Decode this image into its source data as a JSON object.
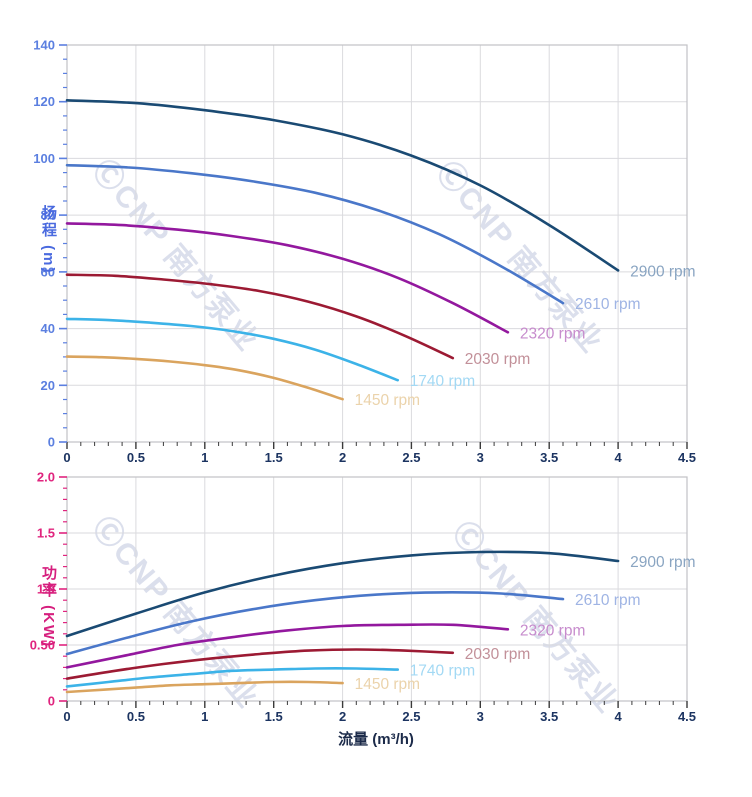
{
  "watermark": {
    "text": "ⒸCNP 南方泵业",
    "color": "rgba(176,184,212,0.45)"
  },
  "x_axis": {
    "title": "流量 (m³/h)",
    "min": 0,
    "max": 4.5,
    "major_step": 0.5,
    "minor_step": 0.1,
    "tick_labels": [
      "0",
      "0.5",
      "1",
      "1.5",
      "2",
      "2.5",
      "3",
      "3.5",
      "4",
      "4.5"
    ],
    "label_color": "#1c3461",
    "tick_color": "#3a3a3a"
  },
  "chart_data": [
    {
      "type": "line",
      "name": "head-curve-chart",
      "title": "",
      "xlabel": "流量 (m³/h)",
      "ylabel": "扬程 (m)",
      "ylabel_color": "#4a6adf",
      "ylim": [
        0,
        140
      ],
      "y_major_step": 20,
      "y_minor_step": 5,
      "ytick_labels": [
        "0",
        "20",
        "40",
        "60",
        "80",
        "100",
        "120",
        "140"
      ],
      "ytick_color": "#5b7fe0",
      "grid": true,
      "legend_position": "curve-end-labels",
      "series": [
        {
          "name": "2900 rpm",
          "color": "#1a4a73",
          "label_color": "#8aa5c2",
          "points": [
            [
              0,
              120.5
            ],
            [
              0.5,
              119.5
            ],
            [
              1,
              117
            ],
            [
              1.5,
              113.5
            ],
            [
              2,
              108.5
            ],
            [
              2.5,
              101
            ],
            [
              3,
              90.5
            ],
            [
              3.5,
              76.5
            ],
            [
              4,
              60.5
            ]
          ]
        },
        {
          "name": "2610 rpm",
          "color": "#4a77c9",
          "label_color": "#9fb4e4",
          "points": [
            [
              0,
              97.6
            ],
            [
              0.45,
              96.8
            ],
            [
              0.9,
              94.8
            ],
            [
              1.35,
              91.9
            ],
            [
              1.8,
              87.9
            ],
            [
              2.25,
              81.8
            ],
            [
              2.7,
              73.3
            ],
            [
              3.15,
              62
            ],
            [
              3.6,
              49
            ]
          ]
        },
        {
          "name": "2320 rpm",
          "color": "#93189e",
          "label_color": "#c78ccd",
          "points": [
            [
              0,
              77.1
            ],
            [
              0.4,
              76.5
            ],
            [
              0.8,
              74.9
            ],
            [
              1.2,
              72.6
            ],
            [
              1.6,
              69.4
            ],
            [
              2,
              64.6
            ],
            [
              2.4,
              57.9
            ],
            [
              2.8,
              49
            ],
            [
              3.2,
              38.7
            ]
          ]
        },
        {
          "name": "2030 rpm",
          "color": "#9c1a33",
          "label_color": "#c29099",
          "points": [
            [
              0,
              59
            ],
            [
              0.35,
              58.6
            ],
            [
              0.7,
              57.3
            ],
            [
              1.05,
              55.6
            ],
            [
              1.4,
              53.2
            ],
            [
              1.75,
              49.5
            ],
            [
              2.1,
              44.3
            ],
            [
              2.45,
              37.5
            ],
            [
              2.8,
              29.6
            ]
          ]
        },
        {
          "name": "1740 rpm",
          "color": "#3cb3e8",
          "label_color": "#a3d9f4",
          "points": [
            [
              0,
              43.4
            ],
            [
              0.3,
              43
            ],
            [
              0.6,
              42.1
            ],
            [
              0.9,
              40.9
            ],
            [
              1.2,
              39.1
            ],
            [
              1.5,
              36.4
            ],
            [
              1.8,
              32.6
            ],
            [
              2.1,
              27.5
            ],
            [
              2.4,
              21.8
            ]
          ]
        },
        {
          "name": "1450 rpm",
          "color": "#daa45e",
          "label_color": "#ebd3ab",
          "points": [
            [
              0,
              30.1
            ],
            [
              0.25,
              29.9
            ],
            [
              0.5,
              29.3
            ],
            [
              0.75,
              28.4
            ],
            [
              1,
              27.1
            ],
            [
              1.25,
              25.3
            ],
            [
              1.5,
              22.6
            ],
            [
              1.75,
              19.1
            ],
            [
              2,
              15.1
            ]
          ]
        }
      ]
    },
    {
      "type": "line",
      "name": "power-curve-chart",
      "title": "",
      "xlabel": "流量 (m³/h)",
      "ylabel": "功率 (KW)",
      "ylabel_color": "#d61f7e",
      "ylim": [
        0,
        2
      ],
      "y_major_step": 0.5,
      "y_minor_step": 0.1,
      "ytick_labels": [
        "0",
        "0.50",
        "1.0",
        "1.5",
        "2.0"
      ],
      "ytick_color": "#e0247e",
      "grid": true,
      "legend_position": "curve-end-labels",
      "series": [
        {
          "name": "2900 rpm",
          "color": "#1a4a73",
          "label_color": "#8aa5c2",
          "points": [
            [
              0,
              0.58
            ],
            [
              0.5,
              0.78
            ],
            [
              1,
              0.97
            ],
            [
              1.5,
              1.12
            ],
            [
              2,
              1.23
            ],
            [
              2.5,
              1.3
            ],
            [
              3,
              1.33
            ],
            [
              3.5,
              1.32
            ],
            [
              4,
              1.25
            ]
          ]
        },
        {
          "name": "2610 rpm",
          "color": "#4a77c9",
          "label_color": "#9fb4e4",
          "points": [
            [
              0,
              0.42
            ],
            [
              0.45,
              0.57
            ],
            [
              0.9,
              0.71
            ],
            [
              1.35,
              0.82
            ],
            [
              1.8,
              0.9
            ],
            [
              2.25,
              0.95
            ],
            [
              2.7,
              0.97
            ],
            [
              3.15,
              0.96
            ],
            [
              3.6,
              0.91
            ]
          ]
        },
        {
          "name": "2320 rpm",
          "color": "#93189e",
          "label_color": "#c78ccd",
          "points": [
            [
              0,
              0.3
            ],
            [
              0.4,
              0.4
            ],
            [
              0.8,
              0.5
            ],
            [
              1.2,
              0.57
            ],
            [
              1.6,
              0.63
            ],
            [
              2,
              0.67
            ],
            [
              2.4,
              0.68
            ],
            [
              2.8,
              0.68
            ],
            [
              3.2,
              0.64
            ]
          ]
        },
        {
          "name": "2030 rpm",
          "color": "#9c1a33",
          "label_color": "#c29099",
          "points": [
            [
              0,
              0.2
            ],
            [
              0.35,
              0.27
            ],
            [
              0.7,
              0.33
            ],
            [
              1.05,
              0.38
            ],
            [
              1.4,
              0.42
            ],
            [
              1.75,
              0.45
            ],
            [
              2.1,
              0.46
            ],
            [
              2.45,
              0.45
            ],
            [
              2.8,
              0.43
            ]
          ]
        },
        {
          "name": "1740 rpm",
          "color": "#3cb3e8",
          "label_color": "#a3d9f4",
          "points": [
            [
              0,
              0.13
            ],
            [
              0.3,
              0.17
            ],
            [
              0.6,
              0.21
            ],
            [
              0.9,
              0.24
            ],
            [
              1.2,
              0.27
            ],
            [
              1.5,
              0.28
            ],
            [
              1.8,
              0.29
            ],
            [
              2.1,
              0.29
            ],
            [
              2.4,
              0.28
            ]
          ]
        },
        {
          "name": "1450 rpm",
          "color": "#daa45e",
          "label_color": "#ebd3ab",
          "points": [
            [
              0,
              0.08
            ],
            [
              0.25,
              0.1
            ],
            [
              0.5,
              0.12
            ],
            [
              0.75,
              0.14
            ],
            [
              1,
              0.15
            ],
            [
              1.25,
              0.16
            ],
            [
              1.5,
              0.17
            ],
            [
              1.75,
              0.17
            ],
            [
              2,
              0.16
            ]
          ]
        }
      ]
    }
  ]
}
